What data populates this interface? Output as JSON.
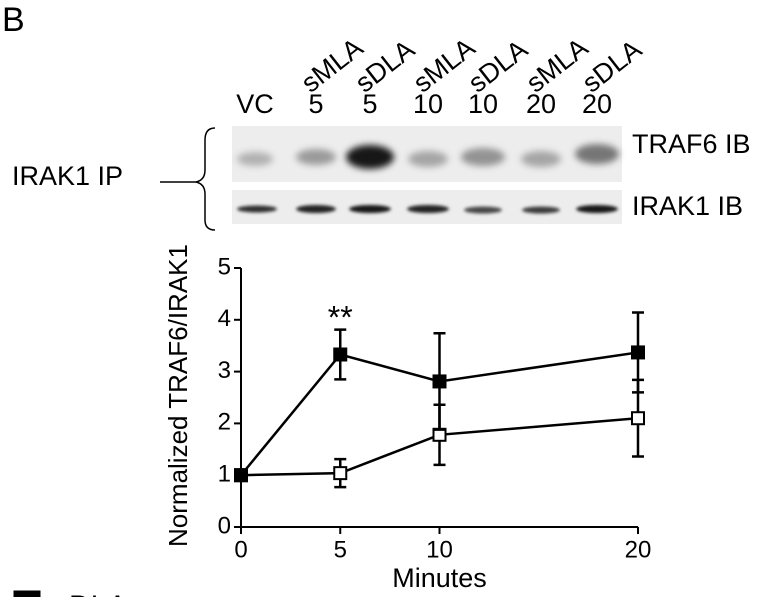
{
  "panel_label": "B",
  "blot": {
    "lane_treatments": [
      "sMLA",
      "sDLA",
      "sMLA",
      "sDLA",
      "sMLA",
      "sDLA"
    ],
    "lane_labels": [
      "VC",
      "5",
      "5",
      "10",
      "10",
      "20",
      "20"
    ],
    "ip_label": "IRAK1 IP",
    "row_labels": [
      "TRAF6 IB",
      "IRAK1 IB"
    ]
  },
  "chart_data": {
    "type": "line",
    "y_label": "Normalized TRAF6/IRAK1",
    "x_label": "Minutes",
    "annotation": "**",
    "x": [
      0,
      5,
      10,
      20
    ],
    "xlim": [
      0,
      20
    ],
    "xticks": [
      0,
      5,
      10,
      20
    ],
    "ylim": [
      0,
      5
    ],
    "yticks": [
      0,
      1,
      2,
      3,
      4,
      5
    ],
    "series": [
      {
        "marker": "open",
        "color": "#000000",
        "values": [
          1.0,
          1.04,
          1.78,
          2.1
        ],
        "errors": [
          null,
          0.27,
          0.58,
          0.74
        ]
      },
      {
        "name": "sDLA",
        "marker": "filled",
        "color": "#000000",
        "values": [
          1.0,
          3.33,
          2.81,
          3.37
        ],
        "errors": [
          null,
          0.48,
          0.93,
          0.77
        ]
      }
    ]
  }
}
